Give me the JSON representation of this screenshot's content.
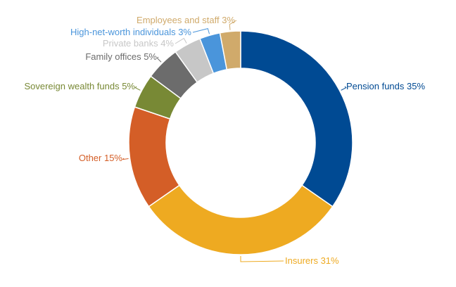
{
  "chart_data": {
    "type": "pie",
    "hole": "donut",
    "slices": [
      {
        "label": "Pension funds",
        "value": 35,
        "text": "Pension funds 35%",
        "color": "#004a93"
      },
      {
        "label": "Insurers",
        "value": 31,
        "text": "Insurers 31%",
        "color": "#eeaa21"
      },
      {
        "label": "Other",
        "value": 15,
        "text": "Other 15%",
        "color": "#d45e27"
      },
      {
        "label": "Sovereign wealth funds",
        "value": 5,
        "text": "Sovereign wealth funds 5%",
        "color": "#788935"
      },
      {
        "label": "Family offices",
        "value": 5,
        "text": "Family offices 5%",
        "color": "#6c6c6c"
      },
      {
        "label": "Private banks",
        "value": 4,
        "text": "Private banks 4%",
        "color": "#c7c7c7"
      },
      {
        "label": "High-net-worth individuals",
        "value": 3,
        "text": "High-net-worth individuals 3%",
        "color": "#4a95db"
      },
      {
        "label": "Employees and staff",
        "value": 3,
        "text": "Employees and staff 3%",
        "color": "#d0aa6b"
      }
    ]
  }
}
